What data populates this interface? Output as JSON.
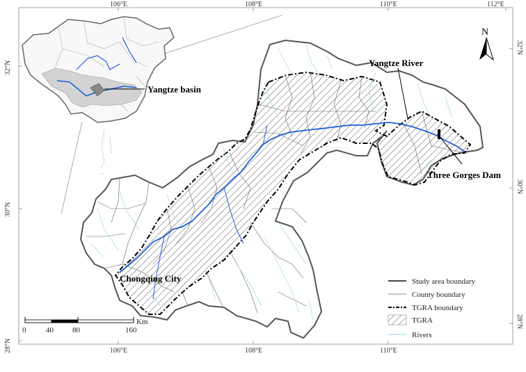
{
  "labels": {
    "yangtze_basin": "Yangtze basin",
    "yangtze_river": "Yangtze River",
    "three_gorges_dam": "Three Gorges Dam",
    "chongqing_city": "Chongqing City"
  },
  "north_arrow": {
    "letter": "N"
  },
  "axes": {
    "top": [
      "106°E",
      "108°E",
      "110°E",
      "112°E"
    ],
    "bottom": [
      "106°E",
      "108°E",
      "110°E"
    ],
    "left": [
      "32°N",
      "30°N",
      "28°N"
    ],
    "right": [
      "32°N",
      "30°N",
      "28°N"
    ]
  },
  "legend": {
    "items": [
      {
        "label": "Study area boundary",
        "symbol": "thick-line"
      },
      {
        "label": "County boundary",
        "symbol": "thin-line"
      },
      {
        "label": "TGRA boundary",
        "symbol": "dash-dot-line"
      },
      {
        "label": "TGRA",
        "symbol": "hatch-box"
      },
      {
        "label": "Rivers",
        "symbol": "river-line"
      }
    ]
  },
  "scale_bar": {
    "ticks": [
      "0",
      "40",
      "80",
      "160"
    ],
    "unit": "Km"
  },
  "colors": {
    "river_main": "#1f5fd6",
    "river_minor": "#a6dcef",
    "boundary": "#555555",
    "basin_fill": "#d3d3d3"
  }
}
